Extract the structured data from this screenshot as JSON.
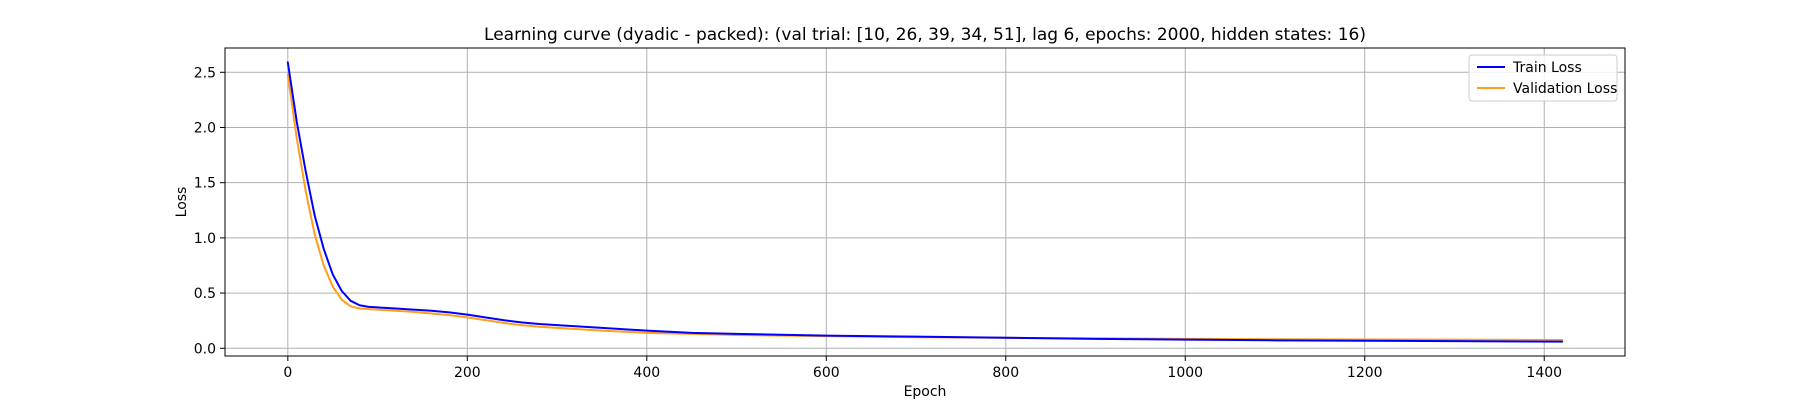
{
  "chart_data": {
    "type": "line",
    "title": "Learning curve (dyadic - packed): (val trial: [10, 26, 39, 34, 51], lag 6, epochs: 2000, hidden states: 16)",
    "xlabel": "Epoch",
    "ylabel": "Loss",
    "xlim": [
      -70,
      1490
    ],
    "ylim": [
      -0.07,
      2.72
    ],
    "xticks": [
      0,
      200,
      400,
      600,
      800,
      1000,
      1200,
      1400
    ],
    "xtick_labels": [
      "0",
      "200",
      "400",
      "600",
      "800",
      "1000",
      "1200",
      "1400"
    ],
    "yticks": [
      0.0,
      0.5,
      1.0,
      1.5,
      2.0,
      2.5
    ],
    "ytick_labels": [
      "0.0",
      "0.5",
      "1.0",
      "1.5",
      "2.0",
      "2.5"
    ],
    "grid": true,
    "legend_position": "top-right",
    "series": [
      {
        "name": "Train Loss",
        "color": "#0000ff",
        "x": [
          0,
          10,
          20,
          30,
          40,
          50,
          60,
          70,
          80,
          90,
          100,
          120,
          140,
          160,
          180,
          200,
          220,
          240,
          260,
          280,
          300,
          350,
          400,
          450,
          500,
          600,
          700,
          800,
          900,
          1000,
          1100,
          1200,
          1300,
          1420
        ],
        "y": [
          2.59,
          2.05,
          1.6,
          1.2,
          0.9,
          0.67,
          0.52,
          0.43,
          0.39,
          0.375,
          0.37,
          0.36,
          0.35,
          0.34,
          0.325,
          0.305,
          0.28,
          0.255,
          0.235,
          0.22,
          0.21,
          0.185,
          0.16,
          0.14,
          0.13,
          0.115,
          0.105,
          0.095,
          0.085,
          0.078,
          0.072,
          0.068,
          0.065,
          0.06
        ]
      },
      {
        "name": "Validation Loss",
        "color": "#ff9f1c",
        "x": [
          0,
          10,
          20,
          30,
          40,
          50,
          60,
          70,
          80,
          90,
          100,
          120,
          140,
          160,
          180,
          200,
          220,
          240,
          260,
          280,
          300,
          350,
          400,
          450,
          500,
          600,
          700,
          800,
          900,
          1000,
          1100,
          1200,
          1300,
          1420
        ],
        "y": [
          2.48,
          1.9,
          1.42,
          1.03,
          0.75,
          0.56,
          0.44,
          0.38,
          0.36,
          0.355,
          0.35,
          0.34,
          0.33,
          0.315,
          0.3,
          0.28,
          0.255,
          0.23,
          0.21,
          0.195,
          0.185,
          0.16,
          0.14,
          0.13,
          0.12,
          0.11,
          0.1,
          0.095,
          0.09,
          0.085,
          0.082,
          0.08,
          0.078,
          0.075
        ]
      }
    ]
  }
}
